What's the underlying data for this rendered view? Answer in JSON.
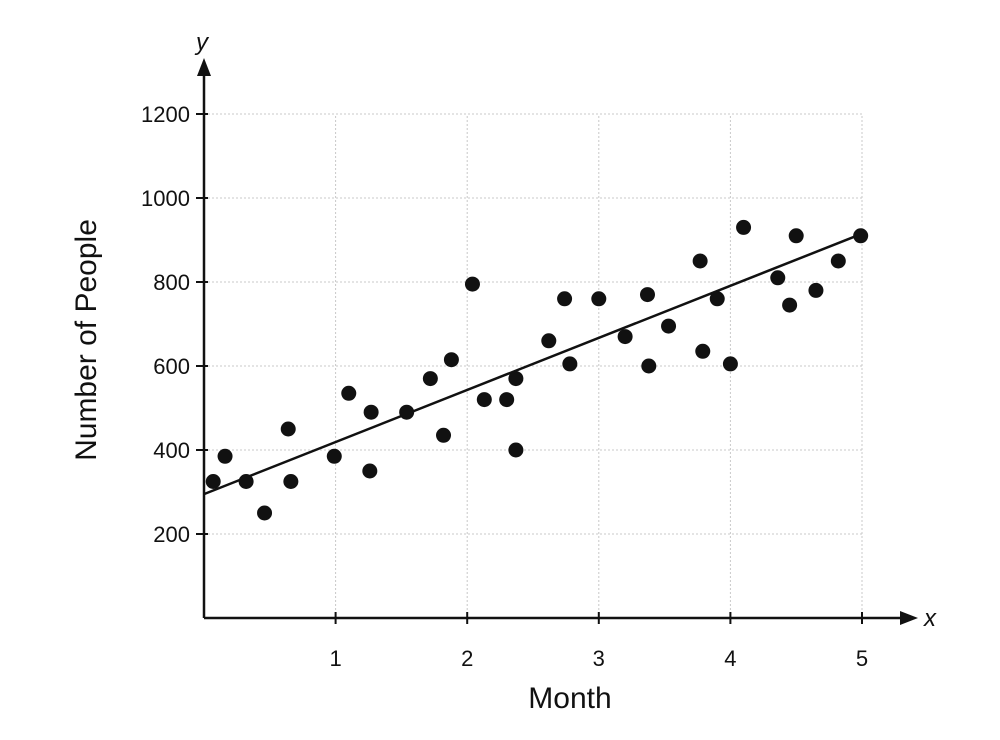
{
  "chart_data": {
    "type": "scatter",
    "title": "",
    "xlabel": "Month",
    "ylabel": "Number of People",
    "x_axis_letter": "x",
    "y_axis_letter": "y",
    "xlim": [
      0,
      5
    ],
    "ylim": [
      0,
      1200
    ],
    "x_ticks": [
      1,
      2,
      3,
      4,
      5
    ],
    "y_ticks": [
      200,
      400,
      600,
      800,
      1000,
      1200
    ],
    "grid": true,
    "legend": "none",
    "trend_line": {
      "x": [
        0,
        5
      ],
      "y": [
        295,
        915
      ]
    },
    "points": [
      {
        "x": 0.07,
        "y": 325
      },
      {
        "x": 0.16,
        "y": 385
      },
      {
        "x": 0.32,
        "y": 325
      },
      {
        "x": 0.46,
        "y": 250
      },
      {
        "x": 0.64,
        "y": 450
      },
      {
        "x": 0.66,
        "y": 325
      },
      {
        "x": 0.99,
        "y": 385
      },
      {
        "x": 1.1,
        "y": 535
      },
      {
        "x": 1.26,
        "y": 350
      },
      {
        "x": 1.27,
        "y": 490
      },
      {
        "x": 1.54,
        "y": 490
      },
      {
        "x": 1.72,
        "y": 570
      },
      {
        "x": 1.82,
        "y": 435
      },
      {
        "x": 1.88,
        "y": 615
      },
      {
        "x": 2.04,
        "y": 795
      },
      {
        "x": 2.13,
        "y": 520
      },
      {
        "x": 2.3,
        "y": 520
      },
      {
        "x": 2.37,
        "y": 570
      },
      {
        "x": 2.37,
        "y": 400
      },
      {
        "x": 2.62,
        "y": 660
      },
      {
        "x": 2.74,
        "y": 760
      },
      {
        "x": 2.78,
        "y": 605
      },
      {
        "x": 3.0,
        "y": 760
      },
      {
        "x": 3.2,
        "y": 670
      },
      {
        "x": 3.37,
        "y": 770
      },
      {
        "x": 3.38,
        "y": 600
      },
      {
        "x": 3.53,
        "y": 695
      },
      {
        "x": 3.77,
        "y": 850
      },
      {
        "x": 3.79,
        "y": 635
      },
      {
        "x": 3.9,
        "y": 760
      },
      {
        "x": 4.0,
        "y": 605
      },
      {
        "x": 4.1,
        "y": 930
      },
      {
        "x": 4.36,
        "y": 810
      },
      {
        "x": 4.45,
        "y": 745
      },
      {
        "x": 4.5,
        "y": 910
      },
      {
        "x": 4.65,
        "y": 780
      },
      {
        "x": 4.82,
        "y": 850
      },
      {
        "x": 4.99,
        "y": 910
      }
    ]
  }
}
